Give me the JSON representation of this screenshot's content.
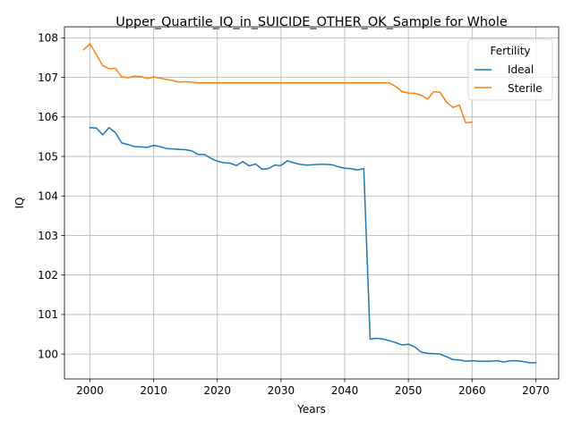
{
  "chart_data": {
    "type": "line",
    "title": "Upper_Quartile_IQ_in_SUICIDE_OTHER_OK_Sample for Whole",
    "xlabel": "Years",
    "ylabel": "IQ",
    "xlim": [
      1996.0,
      2073.6
    ],
    "ylim": [
      99.37,
      108.28
    ],
    "xticks": [
      2000,
      2010,
      2020,
      2030,
      2040,
      2050,
      2060,
      2070
    ],
    "yticks": [
      100,
      101,
      102,
      103,
      104,
      105,
      106,
      107,
      108
    ],
    "grid": true,
    "legend": {
      "title": "Fertility",
      "placement": "top-right"
    },
    "series": [
      {
        "name": "Ideal",
        "color": "#1f77b4",
        "x": [
          2000,
          2001,
          2002,
          2003,
          2004,
          2005,
          2006,
          2007,
          2008,
          2009,
          2010,
          2011,
          2012,
          2013,
          2014,
          2015,
          2016,
          2017,
          2018,
          2019,
          2020,
          2021,
          2022,
          2023,
          2024,
          2025,
          2026,
          2027,
          2028,
          2029,
          2030,
          2031,
          2032,
          2033,
          2034,
          2035,
          2036,
          2037,
          2038,
          2039,
          2040,
          2041,
          2042,
          2043,
          2044,
          2045,
          2046,
          2047,
          2048,
          2049,
          2050,
          2051,
          2052,
          2053,
          2054,
          2055,
          2056,
          2057,
          2058,
          2059,
          2060,
          2061,
          2062,
          2063,
          2064,
          2065,
          2066,
          2067,
          2068,
          2069,
          2070
        ],
        "values": [
          105.73,
          105.72,
          105.55,
          105.73,
          105.6,
          105.34,
          105.3,
          105.25,
          105.24,
          105.23,
          105.28,
          105.25,
          105.2,
          105.19,
          105.18,
          105.17,
          105.14,
          105.05,
          105.05,
          104.95,
          104.88,
          104.84,
          104.83,
          104.77,
          104.87,
          104.76,
          104.81,
          104.68,
          104.69,
          104.78,
          104.77,
          104.89,
          104.84,
          104.8,
          104.78,
          104.79,
          104.8,
          104.8,
          104.79,
          104.74,
          104.7,
          104.69,
          104.66,
          104.69,
          100.38,
          100.4,
          100.38,
          100.34,
          100.29,
          100.23,
          100.25,
          100.18,
          100.05,
          100.02,
          100.01,
          100.0,
          99.93,
          99.86,
          99.85,
          99.82,
          99.83,
          99.82,
          99.82,
          99.82,
          99.83,
          99.8,
          99.83,
          99.83,
          99.81,
          99.78,
          99.78
        ]
      },
      {
        "name": "Sterile",
        "color": "#ff7f0e",
        "x": [
          1999,
          2000,
          2001,
          2002,
          2003,
          2004,
          2005,
          2006,
          2007,
          2008,
          2009,
          2010,
          2011,
          2012,
          2013,
          2014,
          2015,
          2016,
          2017,
          2018,
          2019,
          2020,
          2021,
          2022,
          2023,
          2024,
          2025,
          2026,
          2027,
          2028,
          2029,
          2030,
          2031,
          2032,
          2033,
          2034,
          2035,
          2036,
          2037,
          2038,
          2039,
          2040,
          2041,
          2042,
          2043,
          2044,
          2045,
          2046,
          2047,
          2048,
          2049,
          2050,
          2051,
          2052,
          2053,
          2054,
          2055,
          2056,
          2057,
          2058,
          2059,
          2060
        ],
        "values": [
          107.7,
          107.85,
          107.58,
          107.3,
          107.22,
          107.23,
          107.01,
          106.99,
          107.03,
          107.02,
          106.97,
          107.01,
          106.98,
          106.95,
          106.92,
          106.88,
          106.89,
          106.88,
          106.86,
          106.86,
          106.86,
          106.86,
          106.86,
          106.86,
          106.86,
          106.86,
          106.86,
          106.86,
          106.86,
          106.86,
          106.86,
          106.86,
          106.86,
          106.86,
          106.86,
          106.86,
          106.86,
          106.86,
          106.86,
          106.86,
          106.86,
          106.86,
          106.86,
          106.86,
          106.86,
          106.86,
          106.86,
          106.86,
          106.86,
          106.77,
          106.64,
          106.6,
          106.6,
          106.55,
          106.45,
          106.64,
          106.62,
          106.37,
          106.24,
          106.3,
          105.85,
          105.87
        ]
      }
    ]
  }
}
